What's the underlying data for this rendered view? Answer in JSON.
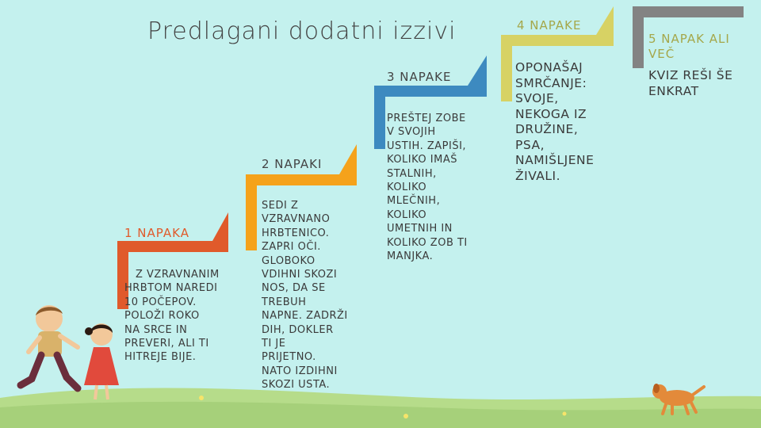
{
  "title": "Predlagani dodatni izzivi",
  "steps": [
    {
      "heading": "1 NAPAKA",
      "text": "Z VZRAVNANIM\nHRBTOM NAREDI\n10 POČEPOV.\nPOLOŽI ROKO\nNA SRCE IN\nPREVERI, ALI TI\nHITREJE BIJE.",
      "color": "#e05a2b"
    },
    {
      "heading": "2 NAPAKI",
      "text": "SEDI Z\nVZRAVNANO\nHRBTENICO.\nZAPRI OČI.\nGLOBOKO\nVDIHNI SKOZI\nNOS, DA SE\nTREBUH\nNAPNE. ZADRŽI\nDIH, DOKLER\nTI JE\nPRIJETNO.\nNATO IZDIHNI\nSKOZI USTA.",
      "color": "#f5a21b"
    },
    {
      "heading": "3 NAPAKE",
      "text": "PREŠTEJ ZOBE\nV SVOJIH\nUSTIH. ZAPIŠI,\nKOLIKO IMAŠ\nSTALNIH,\nKOLIKO\nMLEČNIH,\nKOLIKO\nUMETNIH IN\nKOLIKO ZOB TI\nMANJKA.",
      "color": "#3d8ac0"
    },
    {
      "heading": "4 NAPAKE",
      "text": "OPONAŠAJ\nSMRČANJE:\nSVOJE,\nNEKOGA IZ\nDRUŽINE,\nPSA,\nNAMIŠLJENE\nŽIVALI.",
      "color": "#d7d264"
    },
    {
      "heading": "5 NAPAK ALI\nVEČ",
      "text": "KVIZ REŠI ŠE\nENKRAT",
      "color": "#838383"
    }
  ]
}
